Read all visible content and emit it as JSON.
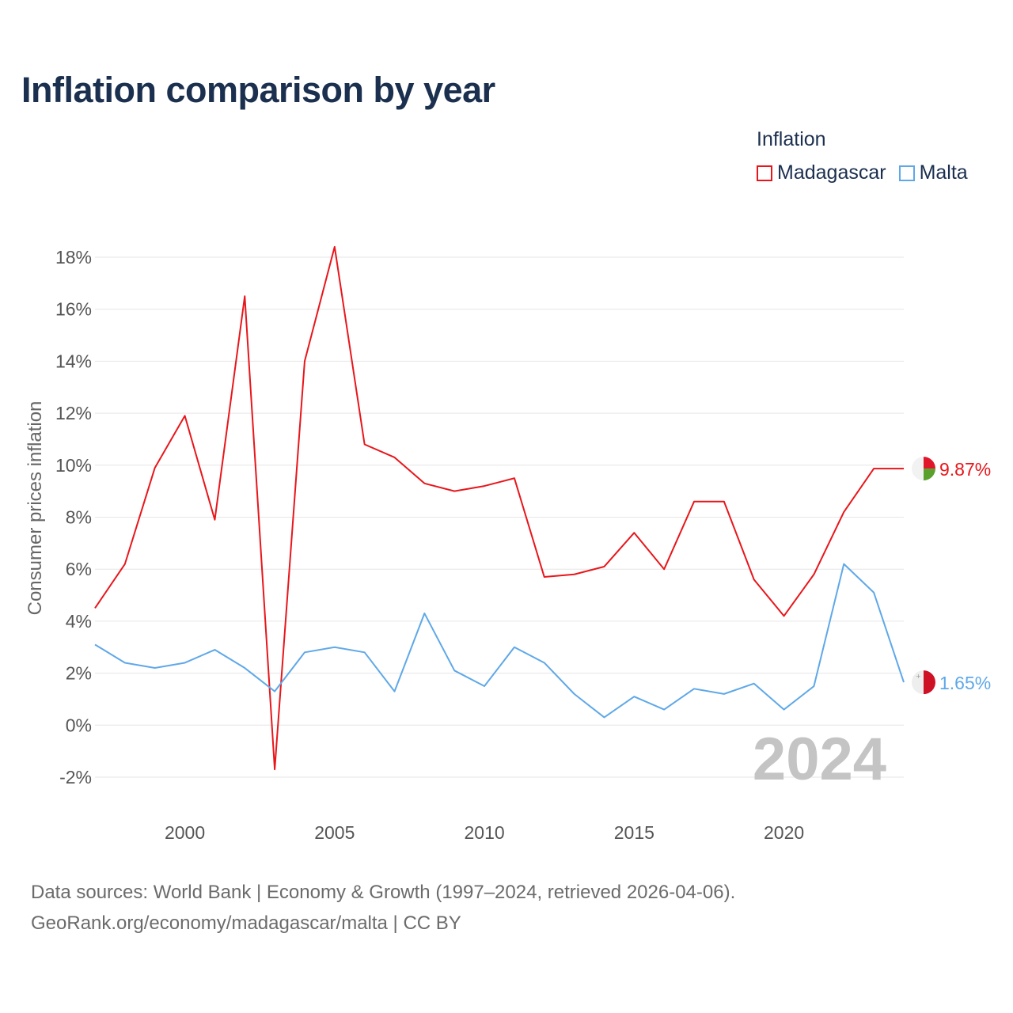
{
  "title": "Inflation comparison by year",
  "legend": {
    "title": "Inflation",
    "items": [
      {
        "label": "Madagascar",
        "color": "#e8161b"
      },
      {
        "label": "Malta",
        "color": "#5fa8e8"
      }
    ]
  },
  "source": {
    "line1": "Data sources: World Bank | Economy & Growth (1997–2024, retrieved 2026-04-06).",
    "line2": "GeoRank.org/economy/madagascar/malta | CC BY"
  },
  "chart_data": {
    "type": "line",
    "title": "Inflation comparison by year",
    "xlabel": "",
    "ylabel": "Consumer prices inflation",
    "xlim": [
      1997,
      2024
    ],
    "ylim": [
      -2,
      18
    ],
    "x_ticks": [
      2000,
      2005,
      2010,
      2015,
      2020
    ],
    "y_ticks": [
      -2,
      0,
      2,
      4,
      6,
      8,
      10,
      12,
      14,
      16,
      18
    ],
    "y_tick_labels": [
      "-2%",
      "0%",
      "2%",
      "4%",
      "6%",
      "8%",
      "10%",
      "12%",
      "14%",
      "16%",
      "18%"
    ],
    "watermark_year": "2024",
    "x": [
      1997,
      1998,
      1999,
      2000,
      2001,
      2002,
      2003,
      2004,
      2005,
      2006,
      2007,
      2008,
      2009,
      2010,
      2011,
      2012,
      2013,
      2014,
      2015,
      2016,
      2017,
      2018,
      2019,
      2020,
      2021,
      2022,
      2023,
      2024
    ],
    "series": [
      {
        "name": "Madagascar",
        "color": "#e8161b",
        "end_label": "9.87%",
        "flag": "madagascar-flag",
        "values": [
          4.5,
          6.2,
          9.9,
          11.9,
          7.9,
          16.5,
          -1.7,
          14.0,
          18.4,
          10.8,
          10.3,
          9.3,
          9.0,
          9.2,
          9.5,
          5.7,
          5.8,
          6.1,
          7.4,
          6.0,
          8.6,
          8.6,
          5.6,
          4.2,
          5.8,
          8.2,
          9.87,
          9.87
        ]
      },
      {
        "name": "Malta",
        "color": "#5fa8e8",
        "end_label": "1.65%",
        "flag": "malta-flag",
        "values": [
          3.1,
          2.4,
          2.2,
          2.4,
          2.9,
          2.2,
          1.3,
          2.8,
          3.0,
          2.8,
          1.3,
          4.3,
          2.1,
          1.5,
          3.0,
          2.4,
          1.2,
          0.3,
          1.1,
          0.6,
          1.4,
          1.2,
          1.6,
          0.6,
          1.5,
          6.2,
          5.1,
          1.65
        ]
      }
    ]
  }
}
